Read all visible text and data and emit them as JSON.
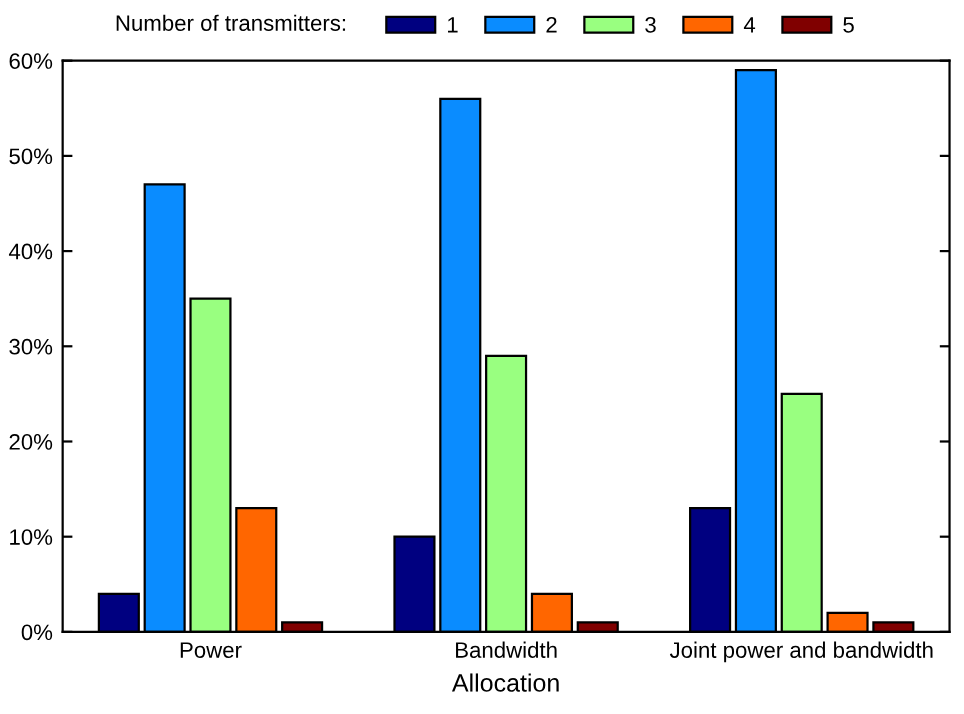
{
  "chart_data": {
    "type": "bar",
    "xlabel": "Allocation",
    "legend_title": "Number of transmitters:",
    "legend": "top",
    "categories": [
      "Power",
      "Bandwidth",
      "Joint power and bandwidth"
    ],
    "series": [
      {
        "name": "1",
        "color": "#000080",
        "values": [
          4,
          10,
          13
        ]
      },
      {
        "name": "2",
        "color": "#0a8cff",
        "values": [
          47,
          56,
          59
        ]
      },
      {
        "name": "3",
        "color": "#99ff80",
        "values": [
          35,
          29,
          25
        ]
      },
      {
        "name": "4",
        "color": "#ff6600",
        "values": [
          13,
          4,
          2
        ]
      },
      {
        "name": "5",
        "color": "#800000",
        "values": [
          1,
          1,
          1
        ]
      }
    ],
    "ylim": [
      0,
      60
    ],
    "yticks": [
      {
        "value": 0,
        "label": "0%"
      },
      {
        "value": 10,
        "label": "10%"
      },
      {
        "value": 20,
        "label": "20%"
      },
      {
        "value": 30,
        "label": "30%"
      },
      {
        "value": 40,
        "label": "40%"
      },
      {
        "value": 50,
        "label": "50%"
      },
      {
        "value": 60,
        "label": "60%"
      }
    ],
    "grid": false
  }
}
